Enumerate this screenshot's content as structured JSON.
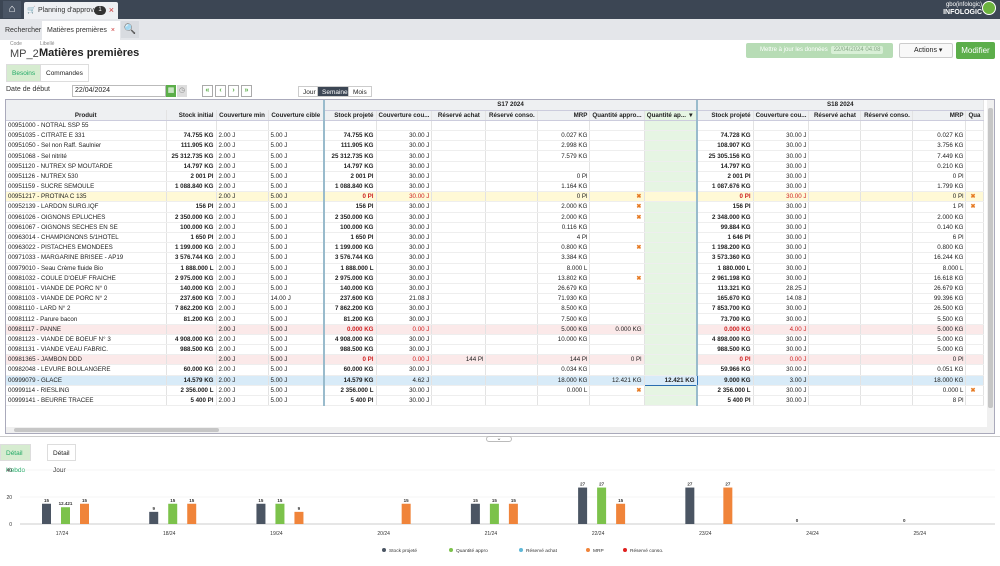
{
  "topbar": {
    "tab_title": "Planning d'approv...",
    "tab_badge": "1",
    "logo_line1": "gbo(infologic)",
    "logo_line2": "INFOLOGIC"
  },
  "tabs2": {
    "search": "Rechercher",
    "current": "Matières premières"
  },
  "header": {
    "code_label": "Code",
    "code": "MP_2",
    "lib_label": "Libellé",
    "title": "Matières premières",
    "mrp_button": "Mettre à jour les données",
    "mrp_date": "22/04/2024 04:08",
    "actions": "Actions",
    "modifier": "Modifier"
  },
  "subtabs": {
    "besoins": "Besoins",
    "commandes": "Commandes"
  },
  "filter": {
    "label": "Date de début",
    "value": "22/04/2024",
    "seg": [
      "Jour",
      "Semaine",
      "Mois"
    ]
  },
  "grid": {
    "headers": {
      "produit": "Produit",
      "stock_initial": "Stock initial",
      "couv_min": "Couverture min",
      "couv_cible": "Couverture cible",
      "week1": "S17 2024",
      "week2": "S18 2024",
      "stock_proj": "Stock projeté",
      "couv": "Couverture cou...",
      "reserve_achat": "Réservé achat",
      "reserve_conso": "Réservé conso.",
      "mrp": "MRP",
      "qte_appro": "Quantité appro...",
      "qte_ap": "Quantité ap...",
      "qua": "Qua"
    },
    "rows": [
      {
        "p": "00951000 - NOTRAL SSP 55",
        "si": "",
        "cmin": "",
        "cc": "",
        "w1": [
          "",
          "",
          "",
          "",
          "",
          "",
          ""
        ],
        "w2": [
          "",
          "",
          "",
          "",
          ""
        ],
        "cls": ""
      },
      {
        "p": "00951035 - CITRATE E 331",
        "si": "74.755 KG",
        "cmin": "2.00 J",
        "cc": "5.00 J",
        "w1": [
          "74.755 KG",
          "30.00 J",
          "",
          "",
          "0.027 KG",
          "",
          ""
        ],
        "w2": [
          "74.728 KG",
          "30.00 J",
          "",
          "",
          "0.027 KG"
        ],
        "cls": ""
      },
      {
        "p": "00951050 - Sel non Raff. Saulnier",
        "si": "111.905 KG",
        "cmin": "2.00 J",
        "cc": "5.00 J",
        "w1": [
          "111.905 KG",
          "30.00 J",
          "",
          "",
          "2.998 KG",
          "",
          ""
        ],
        "w2": [
          "108.907 KG",
          "30.00 J",
          "",
          "",
          "3.756 KG"
        ],
        "cls": ""
      },
      {
        "p": "00951068 - Sel nitrité",
        "si": "25 312.735 KG",
        "cmin": "2.00 J",
        "cc": "5.00 J",
        "w1": [
          "25 312.735 KG",
          "30.00 J",
          "",
          "",
          "7.579 KG",
          "",
          ""
        ],
        "w2": [
          "25 305.156 KG",
          "30.00 J",
          "",
          "",
          "7.449 KG"
        ],
        "cls": ""
      },
      {
        "p": "00951120 - NUTREX SP MOUTARDE",
        "si": "14.797 KG",
        "cmin": "2.00 J",
        "cc": "5.00 J",
        "w1": [
          "14.797 KG",
          "30.00 J",
          "",
          "",
          "",
          "",
          ""
        ],
        "w2": [
          "14.797 KG",
          "30.00 J",
          "",
          "",
          "0.210 KG"
        ],
        "cls": ""
      },
      {
        "p": "00951126 - NUTREX 530",
        "si": "2 001 Pl",
        "cmin": "2.00 J",
        "cc": "5.00 J",
        "w1": [
          "2 001 Pl",
          "30.00 J",
          "",
          "",
          "0 Pl",
          "",
          ""
        ],
        "w2": [
          "2 001 Pl",
          "30.00 J",
          "",
          "",
          "0 Pl"
        ],
        "cls": ""
      },
      {
        "p": "00951159 - SUCRE SEMOULE",
        "si": "1 088.840 KG",
        "cmin": "2.00 J",
        "cc": "5.00 J",
        "w1": [
          "1 088.840 KG",
          "30.00 J",
          "",
          "",
          "1.164 KG",
          "",
          ""
        ],
        "w2": [
          "1 087.676 KG",
          "30.00 J",
          "",
          "",
          "1.799 KG"
        ],
        "cls": ""
      },
      {
        "p": "00951217 - PROTINA C 135",
        "si": "",
        "cmin": "2.00 J",
        "cc": "5.00 J",
        "w1": [
          "0 Pl",
          "30.00 J",
          "",
          "",
          "0 Pl",
          "x",
          ""
        ],
        "w2": [
          "0 Pl",
          "30.00 J",
          "",
          "",
          "0 Pl"
        ],
        "cls": "yellow",
        "x2": true
      },
      {
        "p": "00952139 - LARDON SURG.IQF",
        "si": "156 Pl",
        "cmin": "2.00 J",
        "cc": "5.00 J",
        "w1": [
          "156 Pl",
          "30.00 J",
          "",
          "",
          "2.000 KG",
          "x",
          ""
        ],
        "w2": [
          "156 Pl",
          "30.00 J",
          "",
          "",
          "1 Pl"
        ],
        "cls": "",
        "x2": true
      },
      {
        "p": "00961026 - OIGNONS EPLUCHES",
        "si": "2 350.000 KG",
        "cmin": "2.00 J",
        "cc": "5.00 J",
        "w1": [
          "2 350.000 KG",
          "30.00 J",
          "",
          "",
          "2.000 KG",
          "x",
          ""
        ],
        "w2": [
          "2 348.000 KG",
          "30.00 J",
          "",
          "",
          "2.000 KG"
        ],
        "cls": ""
      },
      {
        "p": "00961067 - OIGNONS SECHES EN SE",
        "si": "100.000 KG",
        "cmin": "2.00 J",
        "cc": "5.00 J",
        "w1": [
          "100.000 KG",
          "30.00 J",
          "",
          "",
          "0.116 KG",
          "",
          ""
        ],
        "w2": [
          "99.884 KG",
          "30.00 J",
          "",
          "",
          "0.140 KG"
        ],
        "cls": ""
      },
      {
        "p": "00963014 - CHAMPIGNONS 5/1HOTEL",
        "si": "1 650 Pl",
        "cmin": "2.00 J",
        "cc": "5.00 J",
        "w1": [
          "1 650 Pl",
          "30.00 J",
          "",
          "",
          "4 Pl",
          "",
          ""
        ],
        "w2": [
          "1 646 Pl",
          "30.00 J",
          "",
          "",
          "6 Pl"
        ],
        "cls": ""
      },
      {
        "p": "00963022 - PISTACHES EMONDEES",
        "si": "1 199.000 KG",
        "cmin": "2.00 J",
        "cc": "5.00 J",
        "w1": [
          "1 199.000 KG",
          "30.00 J",
          "",
          "",
          "0.800 KG",
          "x",
          ""
        ],
        "w2": [
          "1 198.200 KG",
          "30.00 J",
          "",
          "",
          "0.800 KG"
        ],
        "cls": ""
      },
      {
        "p": "00971033 - MARGARINE BRISEE - AP19",
        "si": "3 576.744 KG",
        "cmin": "2.00 J",
        "cc": "5.00 J",
        "w1": [
          "3 576.744 KG",
          "30.00 J",
          "",
          "",
          "3.384 KG",
          "",
          ""
        ],
        "w2": [
          "3 573.360 KG",
          "30.00 J",
          "",
          "",
          "16.244 KG"
        ],
        "cls": ""
      },
      {
        "p": "00979010 - Seau Crème fluide Bio",
        "si": "1 888.000 L",
        "cmin": "2.00 J",
        "cc": "5.00 J",
        "w1": [
          "1 888.000 L",
          "30.00 J",
          "",
          "",
          "8.000 L",
          "",
          ""
        ],
        "w2": [
          "1 880.000 L",
          "30.00 J",
          "",
          "",
          "8.000 L"
        ],
        "cls": ""
      },
      {
        "p": "00981032 - COULE D'OEUF FRAICHE",
        "si": "2 975.000 KG",
        "cmin": "2.00 J",
        "cc": "5.00 J",
        "w1": [
          "2 975.000 KG",
          "30.00 J",
          "",
          "",
          "13.802 KG",
          "x",
          ""
        ],
        "w2": [
          "2 961.198 KG",
          "30.00 J",
          "",
          "",
          "16.618 KG"
        ],
        "cls": ""
      },
      {
        "p": "00981101 - VIANDE DE PORC N° 0",
        "si": "140.000 KG",
        "cmin": "2.00 J",
        "cc": "5.00 J",
        "w1": [
          "140.000 KG",
          "30.00 J",
          "",
          "",
          "26.679 KG",
          "",
          ""
        ],
        "w2": [
          "113.321 KG",
          "28.25 J",
          "",
          "",
          "26.679 KG"
        ],
        "cls": ""
      },
      {
        "p": "00981103 - VIANDE DE PORC N° 2",
        "si": "237.600 KG",
        "cmin": "7.00 J",
        "cc": "14.00 J",
        "w1": [
          "237.600 KG",
          "21.08 J",
          "",
          "",
          "71.930 KG",
          "",
          ""
        ],
        "w2": [
          "165.670 KG",
          "14.08 J",
          "",
          "",
          "99.396 KG"
        ],
        "cls": ""
      },
      {
        "p": "00981110 - LARD N° 2",
        "si": "7 862.200 KG",
        "cmin": "2.00 J",
        "cc": "5.00 J",
        "w1": [
          "7 862.200 KG",
          "30.00 J",
          "",
          "",
          "8.500 KG",
          "",
          ""
        ],
        "w2": [
          "7 853.700 KG",
          "30.00 J",
          "",
          "",
          "26.500 KG"
        ],
        "cls": ""
      },
      {
        "p": "00981112 - Parure bacon",
        "si": "81.200 KG",
        "cmin": "2.00 J",
        "cc": "5.00 J",
        "w1": [
          "81.200 KG",
          "30.00 J",
          "",
          "",
          "7.500 KG",
          "",
          ""
        ],
        "w2": [
          "73.700 KG",
          "30.00 J",
          "",
          "",
          "5.500 KG"
        ],
        "cls": ""
      },
      {
        "p": "00981117 - PANNE",
        "si": "",
        "cmin": "2.00 J",
        "cc": "5.00 J",
        "w1": [
          "0.000 KG",
          "0.00 J",
          "",
          "",
          "5.000 KG",
          "0.000 KG",
          ""
        ],
        "w2": [
          "0.000 KG",
          "4.00 J",
          "",
          "",
          "5.000 KG"
        ],
        "cls": "pink"
      },
      {
        "p": "00981123 - VIANDE DE BOEUF N° 3",
        "si": "4 908.000 KG",
        "cmin": "2.00 J",
        "cc": "5.00 J",
        "w1": [
          "4 908.000 KG",
          "30.00 J",
          "",
          "",
          "10.000 KG",
          "",
          ""
        ],
        "w2": [
          "4 898.000 KG",
          "30.00 J",
          "",
          "",
          "5.000 KG"
        ],
        "cls": ""
      },
      {
        "p": "00981131 - VIANDE VEAU FABRIC.",
        "si": "988.500 KG",
        "cmin": "2.00 J",
        "cc": "5.00 J",
        "w1": [
          "988.500 KG",
          "30.00 J",
          "",
          "",
          "",
          "",
          ""
        ],
        "w2": [
          "988.500 KG",
          "30.00 J",
          "",
          "",
          "5.000 KG"
        ],
        "cls": ""
      },
      {
        "p": "00981365 - JAMBON DDD",
        "si": "",
        "cmin": "2.00 J",
        "cc": "5.00 J",
        "w1": [
          "0 Pl",
          "0.00 J",
          "144 Pl",
          "",
          "144 Pl",
          "0 Pl",
          ""
        ],
        "w2": [
          "0 Pl",
          "0.00 J",
          "",
          "",
          "0 Pl"
        ],
        "cls": "pink"
      },
      {
        "p": "00982048 - LEVURE BOULANGERE",
        "si": "60.000 KG",
        "cmin": "2.00 J",
        "cc": "5.00 J",
        "w1": [
          "60.000 KG",
          "30.00 J",
          "",
          "",
          "0.034 KG",
          "",
          ""
        ],
        "w2": [
          "59.966 KG",
          "30.00 J",
          "",
          "",
          "0.051 KG"
        ],
        "cls": ""
      },
      {
        "p": "00999079 - GLACE",
        "si": "14.579 KG",
        "cmin": "2.00 J",
        "cc": "5.00 J",
        "w1": [
          "14.579 KG",
          "4.62 J",
          "",
          "",
          "18.000 KG",
          "12.421 KG",
          "12.421 KG"
        ],
        "w2": [
          "9.000 KG",
          "3.00 J",
          "",
          "",
          "18.000 KG"
        ],
        "cls": "blue"
      },
      {
        "p": "00999114 - RIESLING",
        "si": "2 356.000 L",
        "cmin": "2.00 J",
        "cc": "5.00 J",
        "w1": [
          "2 356.000 L",
          "30.00 J",
          "",
          "",
          "0.000 L",
          "x",
          ""
        ],
        "w2": [
          "2 356.000 L",
          "30.00 J",
          "",
          "",
          "0.000 L"
        ],
        "cls": "",
        "x2": true
      },
      {
        "p": "00999141 - BEURRE TRACEE",
        "si": "5 400 Pl",
        "cmin": "2.00 J",
        "cc": "5.00 J",
        "w1": [
          "5 400 Pl",
          "30.00 J",
          "",
          "",
          "",
          "",
          ""
        ],
        "w2": [
          "5 400 Pl",
          "30.00 J",
          "",
          "",
          "8 Pl"
        ],
        "cls": ""
      }
    ]
  },
  "bottom_tabs": {
    "hebdo": "Détail Hebdo",
    "jour": "Détail Jour"
  },
  "chart_data": {
    "type": "bar",
    "categories": [
      "17/24",
      "18/24",
      "19/24",
      "20/24",
      "21/24",
      "22/24",
      "23/24",
      "24/24",
      "25/24"
    ],
    "ylim": [
      0,
      40
    ],
    "yticks": [
      "0",
      "20",
      "40"
    ],
    "series": [
      {
        "name": "Stock projeté",
        "color": "#4b5563",
        "values": [
          15,
          9,
          15,
          0,
          15,
          27,
          27,
          0,
          0
        ]
      },
      {
        "name": "Quantité appro",
        "color": "#7cc24b",
        "values": [
          12.421,
          15,
          15,
          0,
          15,
          27,
          0,
          0,
          0
        ]
      },
      {
        "name": "Réservé achat",
        "color": "#5fb8d8",
        "values": [
          0,
          0,
          0,
          0,
          0,
          0,
          0,
          0,
          0
        ]
      },
      {
        "name": "MRP",
        "color": "#f0843a",
        "values": [
          15,
          15,
          9,
          15,
          15,
          15,
          27,
          0,
          0
        ]
      },
      {
        "name": "Réservé conso.",
        "color": "#e0201f",
        "values": [
          0,
          0,
          0,
          0,
          0,
          0,
          0,
          0,
          0
        ]
      }
    ],
    "labels": [
      [
        "15",
        "12.421",
        "15"
      ],
      [
        "9",
        "15",
        "15"
      ],
      [
        "15",
        "15",
        "9"
      ],
      [
        "",
        "",
        "15"
      ],
      [
        "15",
        "15",
        "15"
      ],
      [
        "27",
        "27",
        "15"
      ],
      [
        "27",
        "",
        "27"
      ],
      [
        "0",
        "",
        ""
      ],
      [
        "0",
        "",
        ""
      ]
    ]
  }
}
